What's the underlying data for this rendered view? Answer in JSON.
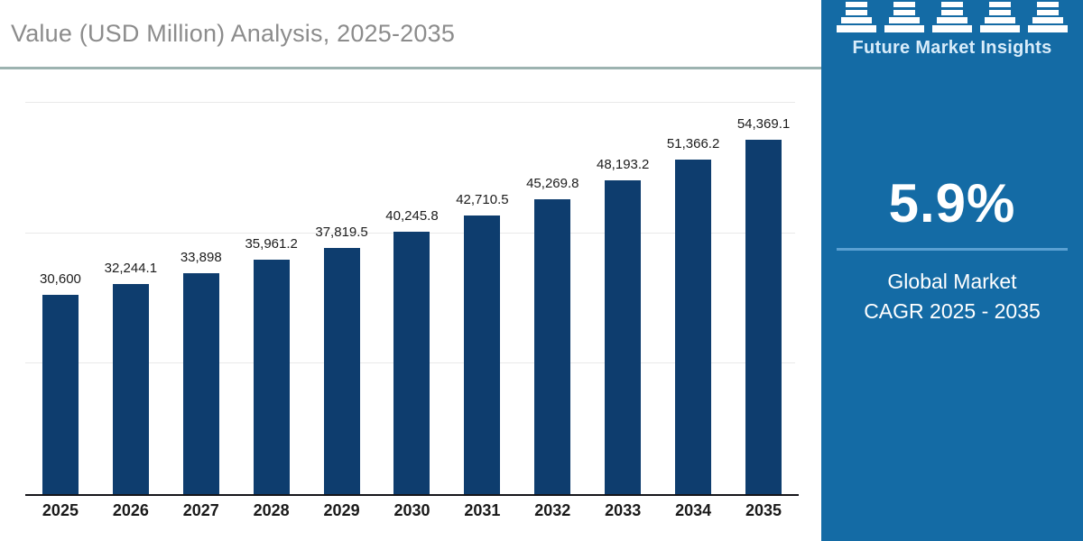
{
  "header": {
    "title": "Value (USD Million) Analysis, 2025-2035"
  },
  "sidebar": {
    "brand": "Future Market Insights",
    "cagr_value": "5.9%",
    "cagr_label_line1": "Global Market",
    "cagr_label_line2": "CAGR 2025 - 2035"
  },
  "theme": {
    "bar_color": "#0E3D6E",
    "sidebar_background": "#146BA5",
    "sidebar_divider": "#5AA0D2",
    "title_color": "#8C8C8C",
    "title_rule_color": "#9DB3B0",
    "gridline_color": "#E9E9E9"
  },
  "chart_data": {
    "type": "bar",
    "title": "Value (USD Million) Analysis, 2025-2035",
    "categories": [
      "2025",
      "2026",
      "2027",
      "2028",
      "2029",
      "2030",
      "2031",
      "2032",
      "2033",
      "2034",
      "2035"
    ],
    "values": [
      30600,
      32244.1,
      33898,
      35961.2,
      37819.5,
      40245.8,
      42710.5,
      45269.8,
      48193.2,
      51366.2,
      54369.1
    ],
    "value_labels": [
      "30,600",
      "32,244.1",
      "33,898",
      "35,961.2",
      "37,819.5",
      "40,245.8",
      "42,710.5",
      "45,269.8",
      "48,193.2",
      "51,366.2",
      "54,369.1"
    ],
    "xlabel": "",
    "ylabel": "",
    "ylim": [
      0,
      60000
    ],
    "gridline_values": [
      20000,
      40000,
      60000
    ],
    "grid": true,
    "legend": false,
    "y_tick_labels_shown": false
  }
}
